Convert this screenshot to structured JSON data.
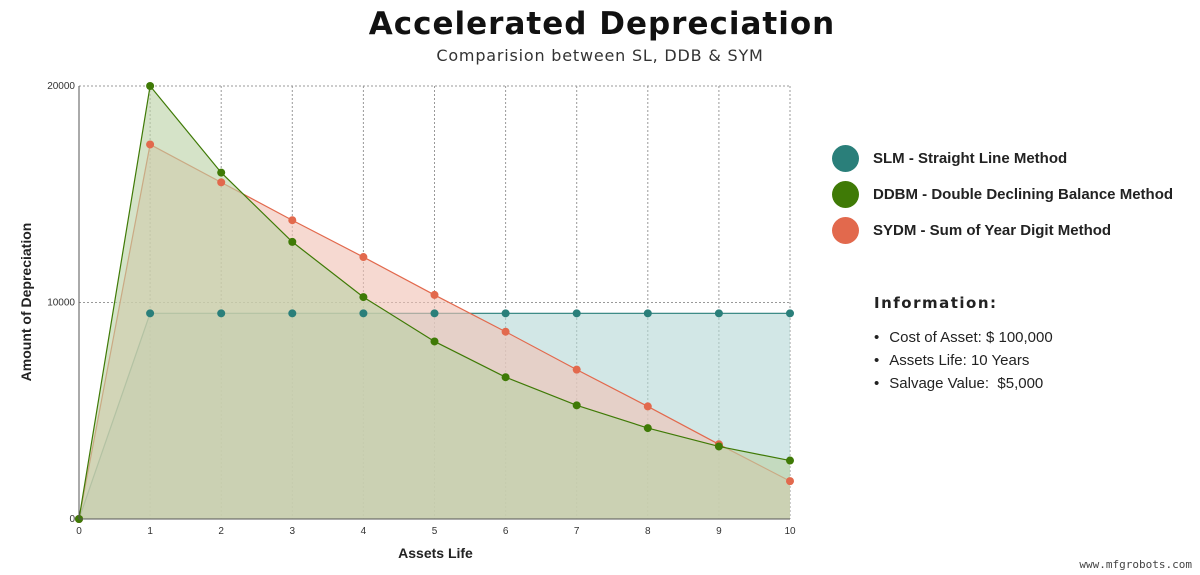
{
  "chart_data": {
    "type": "area",
    "title": "Accelerated Depreciation",
    "subtitle": "Comparision between SL, DDB & SYM",
    "xlabel": "Assets Life",
    "ylabel": "Amount of Depreciation",
    "x": [
      0,
      1,
      2,
      3,
      4,
      5,
      6,
      7,
      8,
      9,
      10
    ],
    "xlim": [
      0,
      10
    ],
    "ylim": [
      0,
      20000
    ],
    "yticks": [
      0,
      10000,
      20000
    ],
    "grid": true,
    "legend_position": "right",
    "series": [
      {
        "name": "SLM - Straight Line Method",
        "color": "#2a7f7a",
        "fill": "#b7d8d6",
        "values": [
          0,
          9500,
          9500,
          9500,
          9500,
          9500,
          9500,
          9500,
          9500,
          9500,
          9500
        ]
      },
      {
        "name": "SYDM - Sum of Year Digit Method",
        "color": "#e2694d",
        "fill": "#f1c2b4",
        "values": [
          0,
          17300,
          15550,
          13800,
          12100,
          10350,
          8650,
          6900,
          5200,
          3450,
          1750
        ]
      },
      {
        "name": "DDBM - Double Declining Balance Method",
        "color": "#3f7a06",
        "fill": "#bcd2a6",
        "values": [
          0,
          20000,
          16000,
          12800,
          10250,
          8200,
          6550,
          5250,
          4200,
          3350,
          2700
        ]
      }
    ]
  },
  "legend": [
    {
      "label": "SLM - Straight Line Method",
      "color": "#2a7f7a"
    },
    {
      "label": "DDBM - Double Declining Balance Method",
      "color": "#3f7a06"
    },
    {
      "label": "SYDM - Sum of Year Digit Method",
      "color": "#e2694d"
    }
  ],
  "info": {
    "title": "Information:",
    "items": [
      "Cost of Asset: $ 100,000",
      "Assets Life: 10 Years",
      "Salvage Value:  $5,000"
    ]
  },
  "watermark": "www.mfgrobots.com"
}
